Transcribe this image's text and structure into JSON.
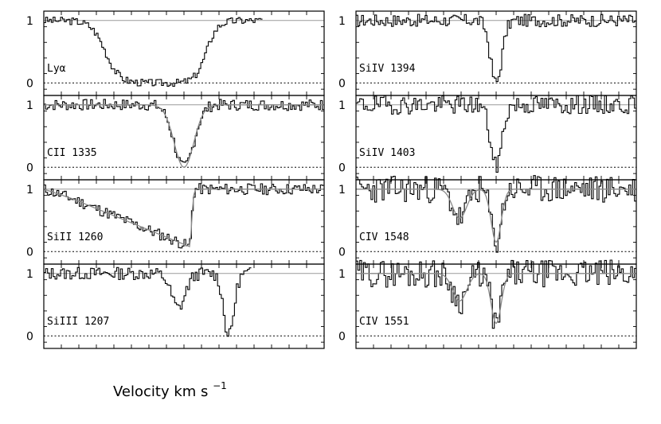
{
  "chart_data": {
    "type": "line",
    "xlabel": "Velocity km s",
    "xlabel_sup": "−1",
    "ylim": [
      -0.2,
      1.15
    ],
    "yticks": [
      0,
      1
    ],
    "grid": false,
    "panels": [
      {
        "label": "Lyα",
        "col": 0,
        "row": 0,
        "profile": {
          "kind": "trough",
          "lo": 0.22,
          "hi": 0.58,
          "depth": 1.0,
          "noise": 0.06,
          "seed": 3
        },
        "end": 0.78,
        "fit": false
      },
      {
        "label": "CII  1335",
        "col": 0,
        "row": 1,
        "profile": {
          "kind": "gauss",
          "center": 0.5,
          "width": 0.035,
          "depth": 1.0,
          "noise": 0.09,
          "seed": 7
        },
        "fit": true
      },
      {
        "label": "SiII  1260",
        "col": 0,
        "row": 2,
        "profile": {
          "kind": "ramp",
          "lo": 0.1,
          "hi": 0.52,
          "depth": 0.92,
          "noise": 0.09,
          "seed": 11
        },
        "fit": true
      },
      {
        "label": "SiIII  1207",
        "col": 0,
        "row": 3,
        "profile": {
          "kind": "double",
          "lo": 0.48,
          "hi": 0.66,
          "depth": 1.0,
          "noise": 0.1,
          "seed": 13
        },
        "end": 0.74,
        "fit": false
      },
      {
        "label": "SiIV  1394",
        "col": 1,
        "row": 0,
        "profile": {
          "kind": "gauss",
          "center": 0.5,
          "width": 0.02,
          "depth": 1.0,
          "noise": 0.1,
          "seed": 17
        },
        "fit": false
      },
      {
        "label": "SiIV  1403",
        "col": 1,
        "row": 1,
        "profile": {
          "kind": "gauss",
          "center": 0.5,
          "width": 0.02,
          "depth": 1.0,
          "noise": 0.15,
          "seed": 19
        },
        "fit": false
      },
      {
        "label": "CIV  1548",
        "col": 1,
        "row": 2,
        "profile": {
          "kind": "double",
          "lo": 0.37,
          "hi": 0.5,
          "depth": 0.85,
          "noise": 0.22,
          "seed": 23
        },
        "fit": true
      },
      {
        "label": "CIV  1551",
        "col": 1,
        "row": 3,
        "profile": {
          "kind": "double",
          "lo": 0.37,
          "hi": 0.5,
          "depth": 0.8,
          "noise": 0.22,
          "seed": 29
        },
        "fit": true
      }
    ]
  }
}
